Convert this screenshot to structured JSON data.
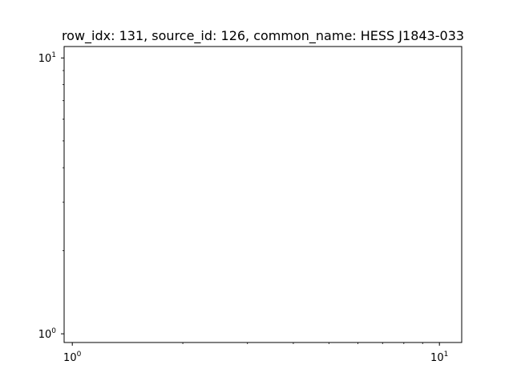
{
  "chart_data": {
    "type": "scatter",
    "title": "row_idx: 131, source_id: 126, common_name: HESS J1843-033",
    "xlabel": "",
    "ylabel": "",
    "xscale": "log",
    "yscale": "log",
    "xlim": [
      0.95,
      11.5
    ],
    "ylim": [
      0.93,
      11.0
    ],
    "x_major_ticks": [
      {
        "value": 1,
        "base": "10",
        "exponent": "0"
      },
      {
        "value": 10,
        "base": "10",
        "exponent": "1"
      }
    ],
    "y_major_ticks": [
      {
        "value": 1,
        "base": "10",
        "exponent": "0"
      },
      {
        "value": 10,
        "base": "10",
        "exponent": "1"
      }
    ],
    "x_minor_ticks": [
      2,
      3,
      4,
      5,
      6,
      7,
      8,
      9
    ],
    "y_minor_ticks": [
      2,
      3,
      4,
      5,
      6,
      7,
      8,
      9
    ],
    "series": [],
    "grid": false,
    "legend": false
  }
}
